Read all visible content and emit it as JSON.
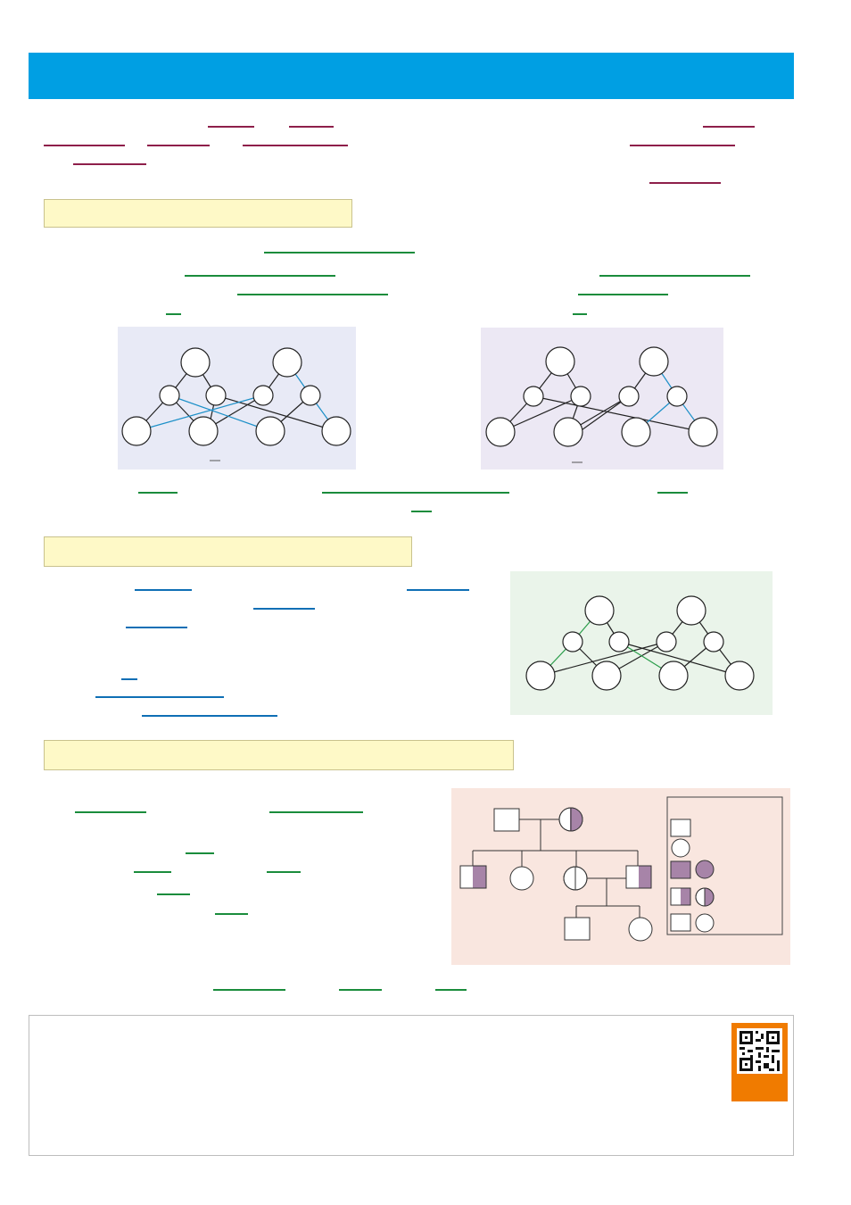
{
  "page": {
    "banner_color": "#009fe3",
    "section_header_color": "#fef9c7",
    "underline_colors": {
      "intro": "#8e1f4a",
      "terms": "#1a8c3c",
      "links": "#0f6fb5"
    }
  },
  "figures": {
    "figure_a_background": "#e8eaf6",
    "figure_b_background": "#ece8f4",
    "figure_c_background": "#eaf4ea",
    "pedigree_background": "#f9e6df",
    "affected_color": "#a784a8",
    "edge_highlight_colors": [
      "#1c90c8",
      "#2a9d4a"
    ]
  },
  "footer": {
    "icons": [
      "qr-code-icon"
    ],
    "qr_badge_color": "#f07b00"
  }
}
